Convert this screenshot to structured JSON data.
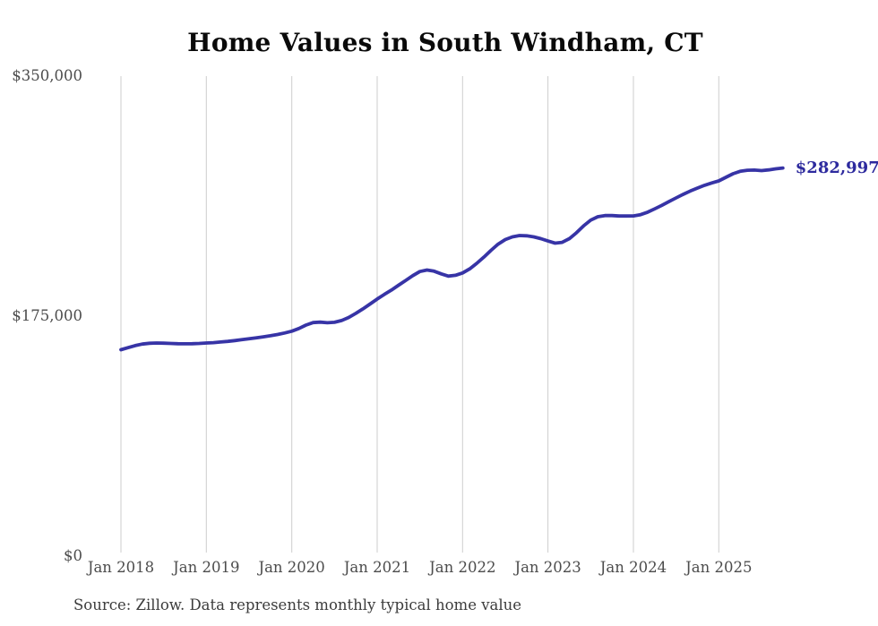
{
  "page": {
    "title": "Home Values in South Windham, CT"
  },
  "chart": {
    "title": "Home Values in South Windham, CT",
    "source_note": "Source: Zillow. Data represents monthly typical home value",
    "end_label": "$282,997",
    "colors": {
      "line": "#3734a6",
      "grid": "#cdcdcd",
      "axis_text": "#4c4c4c",
      "title_text": "#0a0a0a",
      "source_text": "#3c3c3c",
      "end_label_text": "#2d2a9e",
      "background": "#ffffff"
    }
  },
  "chart_data": {
    "type": "line",
    "title": "Home Values in South Windham, CT",
    "ylabel": "",
    "xlabel": "",
    "ylim": [
      0,
      350000
    ],
    "grid": "vertical-only",
    "legend": "none",
    "y_ticks": [
      {
        "label": "$0",
        "value": 0
      },
      {
        "label": "$175,000",
        "value": 175000
      },
      {
        "label": "$350,000",
        "value": 350000
      }
    ],
    "x_ticks": [
      {
        "label": "Jan 2018",
        "month_index": 0
      },
      {
        "label": "Jan 2019",
        "month_index": 12
      },
      {
        "label": "Jan 2020",
        "month_index": 24
      },
      {
        "label": "Jan 2021",
        "month_index": 36
      },
      {
        "label": "Jan 2022",
        "month_index": 48
      },
      {
        "label": "Jan 2023",
        "month_index": 60
      },
      {
        "label": "Jan 2024",
        "month_index": 72
      },
      {
        "label": "Jan 2025",
        "month_index": 84
      }
    ],
    "series": [
      {
        "name": "Typical home value (USD)",
        "frequency": "monthly",
        "start_month": "2018-01",
        "end_month": "2025-10",
        "values": [
          150500,
          152000,
          153500,
          154600,
          155200,
          155400,
          155300,
          155100,
          154900,
          154800,
          154900,
          155100,
          155400,
          155700,
          156100,
          156600,
          157200,
          157800,
          158500,
          159200,
          159900,
          160700,
          161600,
          162700,
          164000,
          166000,
          168500,
          170300,
          170600,
          170200,
          170500,
          171800,
          174000,
          177000,
          180300,
          183800,
          187500,
          190800,
          194000,
          197500,
          201000,
          204500,
          207500,
          208600,
          207800,
          205800,
          204200,
          204800,
          206500,
          209500,
          213500,
          218000,
          223000,
          227500,
          230800,
          232800,
          233800,
          233600,
          232800,
          231500,
          229800,
          228200,
          228800,
          231500,
          235800,
          240800,
          245000,
          247500,
          248300,
          248300,
          248000,
          248000,
          248100,
          249000,
          250800,
          253200,
          255800,
          258500,
          261200,
          263800,
          266200,
          268400,
          270400,
          272100,
          273600,
          276200,
          278800,
          280600,
          281400,
          281500,
          281100,
          281600,
          282400,
          282997
        ]
      }
    ],
    "end_annotation": {
      "label": "$282,997",
      "value": 282997,
      "month": "2025-10"
    }
  }
}
